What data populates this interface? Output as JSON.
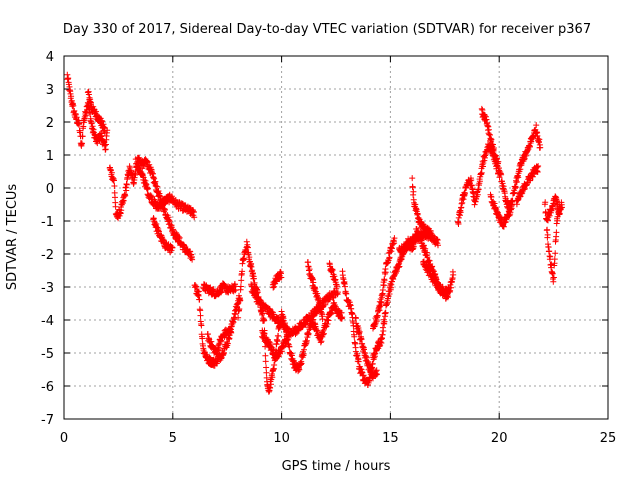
{
  "chart_data": {
    "type": "scatter",
    "title": "Day 330 of 2017, Sidereal Day-to-day VTEC variation (SDTVAR) for receiver p367",
    "xlabel": "GPS time / hours",
    "ylabel": "SDTVAR / TECUs",
    "xlim": [
      0,
      25
    ],
    "ylim": [
      -7,
      4
    ],
    "xticks": [
      0,
      5,
      10,
      15,
      20,
      25
    ],
    "yticks": [
      -7,
      -6,
      -5,
      -4,
      -3,
      -2,
      -1,
      0,
      1,
      2,
      3,
      4
    ],
    "grid": true,
    "marker": "+",
    "series": [
      {
        "name": "SDTVAR",
        "color": "#ff0000",
        "tracks": [
          [
            [
              0.15,
              3.4
            ],
            [
              0.3,
              2.8
            ],
            [
              0.5,
              2.2
            ],
            [
              0.7,
              1.9
            ],
            [
              0.8,
              1.2
            ],
            [
              0.9,
              2.0
            ],
            [
              1.1,
              2.6
            ],
            [
              1.3,
              1.8
            ],
            [
              1.5,
              1.4
            ],
            [
              1.7,
              1.6
            ],
            [
              1.9,
              1.2
            ],
            [
              2.0,
              1.8
            ]
          ],
          [
            [
              1.1,
              2.9
            ],
            [
              1.3,
              2.4
            ],
            [
              1.5,
              2.2
            ],
            [
              1.7,
              2.0
            ],
            [
              1.9,
              1.7
            ]
          ],
          [
            [
              2.1,
              0.6
            ],
            [
              2.3,
              0.2
            ],
            [
              2.4,
              -0.9
            ],
            [
              2.6,
              -0.7
            ],
            [
              2.8,
              -0.2
            ],
            [
              3.0,
              0.6
            ],
            [
              3.2,
              0.2
            ],
            [
              3.4,
              0.9
            ],
            [
              3.6,
              0.7
            ],
            [
              3.8,
              0.8
            ],
            [
              4.0,
              0.5
            ],
            [
              4.2,
              0.1
            ],
            [
              4.4,
              -0.3
            ],
            [
              4.7,
              -0.8
            ],
            [
              5.0,
              -1.3
            ],
            [
              5.3,
              -1.6
            ],
            [
              5.6,
              -1.9
            ],
            [
              5.9,
              -2.1
            ]
          ],
          [
            [
              3.3,
              0.8
            ],
            [
              3.5,
              0.5
            ],
            [
              3.7,
              0.2
            ],
            [
              3.9,
              -0.2
            ],
            [
              4.1,
              -0.4
            ],
            [
              4.3,
              -0.6
            ],
            [
              4.6,
              -0.4
            ],
            [
              4.9,
              -0.3
            ],
            [
              5.2,
              -0.5
            ],
            [
              5.5,
              -0.6
            ],
            [
              5.8,
              -0.7
            ],
            [
              6.0,
              -0.8
            ]
          ],
          [
            [
              4.1,
              -0.9
            ],
            [
              4.3,
              -1.3
            ],
            [
              4.6,
              -1.7
            ],
            [
              5.0,
              -1.9
            ]
          ],
          [
            [
              6.0,
              -3.0
            ],
            [
              6.2,
              -3.2
            ],
            [
              6.3,
              -4.1
            ],
            [
              6.4,
              -4.9
            ],
            [
              6.6,
              -5.2
            ],
            [
              6.9,
              -5.3
            ],
            [
              7.2,
              -5.1
            ],
            [
              7.5,
              -4.7
            ],
            [
              7.7,
              -4.2
            ],
            [
              7.9,
              -3.7
            ],
            [
              8.1,
              -3.2
            ]
          ],
          [
            [
              6.4,
              -3.0
            ],
            [
              6.7,
              -3.1
            ],
            [
              7.0,
              -3.2
            ],
            [
              7.3,
              -3.0
            ],
            [
              7.6,
              -3.1
            ],
            [
              7.9,
              -3.0
            ]
          ],
          [
            [
              6.6,
              -4.5
            ],
            [
              6.8,
              -4.8
            ],
            [
              7.0,
              -5.0
            ],
            [
              7.2,
              -4.6
            ],
            [
              7.4,
              -4.4
            ],
            [
              7.7,
              -4.3
            ]
          ],
          [
            [
              8.0,
              -3.9
            ],
            [
              8.1,
              -3.3
            ],
            [
              8.2,
              -2.3
            ],
            [
              8.4,
              -1.7
            ],
            [
              8.6,
              -2.4
            ],
            [
              8.8,
              -3.0
            ],
            [
              9.0,
              -3.5
            ],
            [
              9.2,
              -4.1
            ],
            [
              9.3,
              -5.7
            ],
            [
              9.4,
              -6.2
            ],
            [
              9.6,
              -5.6
            ],
            [
              9.8,
              -4.6
            ],
            [
              10.0,
              -3.8
            ],
            [
              10.2,
              -4.3
            ],
            [
              10.4,
              -5.0
            ],
            [
              10.6,
              -5.4
            ],
            [
              10.8,
              -5.5
            ],
            [
              11.0,
              -5.0
            ],
            [
              11.2,
              -4.4
            ],
            [
              11.4,
              -4.0
            ],
            [
              11.6,
              -4.3
            ],
            [
              11.8,
              -4.6
            ],
            [
              12.0,
              -4.2
            ],
            [
              12.2,
              -3.9
            ],
            [
              12.4,
              -3.5
            ],
            [
              12.6,
              -3.8
            ],
            [
              12.8,
              -3.9
            ]
          ],
          [
            [
              8.6,
              -3.0
            ],
            [
              8.9,
              -3.4
            ],
            [
              9.2,
              -3.6
            ],
            [
              9.5,
              -3.8
            ],
            [
              9.8,
              -4.0
            ],
            [
              10.1,
              -4.2
            ],
            [
              10.4,
              -4.4
            ],
            [
              10.7,
              -4.3
            ],
            [
              11.0,
              -4.1
            ],
            [
              11.3,
              -3.9
            ],
            [
              11.6,
              -3.7
            ],
            [
              11.9,
              -3.5
            ],
            [
              12.2,
              -3.3
            ],
            [
              12.5,
              -3.2
            ]
          ],
          [
            [
              9.1,
              -4.4
            ],
            [
              9.4,
              -4.7
            ],
            [
              9.7,
              -5.1
            ],
            [
              10.0,
              -4.9
            ],
            [
              10.3,
              -4.5
            ]
          ],
          [
            [
              9.6,
              -3.0
            ],
            [
              9.8,
              -2.7
            ],
            [
              10.0,
              -2.6
            ]
          ],
          [
            [
              11.2,
              -2.3
            ],
            [
              11.3,
              -2.6
            ],
            [
              11.5,
              -3.0
            ],
            [
              11.7,
              -3.4
            ],
            [
              11.9,
              -3.9
            ]
          ],
          [
            [
              12.2,
              -2.3
            ],
            [
              12.4,
              -2.7
            ],
            [
              12.6,
              -3.2
            ]
          ],
          [
            [
              12.8,
              -2.6
            ],
            [
              13.0,
              -3.4
            ],
            [
              13.2,
              -3.6
            ],
            [
              13.4,
              -4.9
            ],
            [
              13.6,
              -5.5
            ],
            [
              13.8,
              -5.8
            ],
            [
              14.0,
              -5.9
            ],
            [
              14.2,
              -5.2
            ],
            [
              14.4,
              -4.8
            ],
            [
              14.6,
              -4.6
            ],
            [
              14.8,
              -3.6
            ],
            [
              15.0,
              -3.0
            ],
            [
              15.2,
              -2.6
            ],
            [
              15.4,
              -2.3
            ],
            [
              15.6,
              -1.9
            ],
            [
              15.8,
              -1.6
            ],
            [
              16.0,
              -1.9
            ],
            [
              16.2,
              -1.3
            ],
            [
              16.4,
              -1.6
            ],
            [
              16.6,
              -1.9
            ],
            [
              16.8,
              -2.3
            ],
            [
              17.0,
              -2.6
            ],
            [
              17.2,
              -3.0
            ],
            [
              17.4,
              -3.1
            ],
            [
              17.6,
              -3.3
            ],
            [
              17.8,
              -2.9
            ],
            [
              17.9,
              -2.5
            ]
          ],
          [
            [
              13.4,
              -4.0
            ],
            [
              13.6,
              -4.5
            ],
            [
              13.8,
              -5.0
            ],
            [
              14.0,
              -5.4
            ],
            [
              14.2,
              -5.7
            ],
            [
              14.4,
              -5.6
            ]
          ],
          [
            [
              14.2,
              -4.2
            ],
            [
              14.4,
              -3.9
            ],
            [
              14.6,
              -3.3
            ],
            [
              14.8,
              -2.4
            ],
            [
              15.0,
              -1.9
            ],
            [
              15.2,
              -1.6
            ]
          ],
          [
            [
              15.4,
              -1.9
            ],
            [
              15.7,
              -1.8
            ],
            [
              16.0,
              -1.6
            ],
            [
              16.3,
              -1.5
            ],
            [
              16.6,
              -1.4
            ],
            [
              16.9,
              -1.5
            ],
            [
              17.2,
              -1.7
            ]
          ],
          [
            [
              16.0,
              0.2
            ],
            [
              16.1,
              -0.5
            ],
            [
              16.3,
              -1.0
            ],
            [
              16.5,
              -1.2
            ],
            [
              16.7,
              -1.3
            ],
            [
              16.9,
              -1.4
            ]
          ],
          [
            [
              16.5,
              -2.2
            ],
            [
              16.8,
              -2.6
            ],
            [
              17.1,
              -2.9
            ],
            [
              17.4,
              -3.2
            ],
            [
              17.7,
              -3.1
            ]
          ],
          [
            [
              18.1,
              -1.1
            ],
            [
              18.3,
              -0.4
            ],
            [
              18.5,
              0.1
            ],
            [
              18.7,
              0.2
            ],
            [
              18.9,
              -0.5
            ],
            [
              19.1,
              0.2
            ],
            [
              19.3,
              0.9
            ],
            [
              19.5,
              1.3
            ],
            [
              19.7,
              1.1
            ],
            [
              19.9,
              0.6
            ],
            [
              20.1,
              0.3
            ],
            [
              20.3,
              -0.4
            ],
            [
              20.5,
              -0.6
            ],
            [
              20.7,
              -0.1
            ],
            [
              20.9,
              0.5
            ],
            [
              21.1,
              0.9
            ],
            [
              21.3,
              1.1
            ],
            [
              21.5,
              1.5
            ],
            [
              21.7,
              1.8
            ],
            [
              21.9,
              1.2
            ]
          ],
          [
            [
              19.2,
              2.3
            ],
            [
              19.4,
              2.1
            ],
            [
              19.6,
              1.5
            ],
            [
              19.8,
              1.0
            ],
            [
              20.0,
              0.6
            ]
          ],
          [
            [
              19.6,
              -0.3
            ],
            [
              19.8,
              -0.6
            ],
            [
              20.0,
              -0.9
            ],
            [
              20.2,
              -1.1
            ],
            [
              20.4,
              -0.8
            ],
            [
              20.6,
              -0.6
            ]
          ],
          [
            [
              20.8,
              -0.4
            ],
            [
              21.0,
              -0.2
            ],
            [
              21.2,
              0.1
            ],
            [
              21.4,
              0.3
            ],
            [
              21.6,
              0.5
            ],
            [
              21.8,
              0.6
            ]
          ],
          [
            [
              22.1,
              -0.4
            ],
            [
              22.2,
              -1.3
            ],
            [
              22.3,
              -2.0
            ],
            [
              22.4,
              -2.4
            ],
            [
              22.5,
              -2.8
            ],
            [
              22.6,
              -1.5
            ],
            [
              22.7,
              -0.7
            ],
            [
              22.9,
              -0.5
            ]
          ],
          [
            [
              22.2,
              -1.0
            ],
            [
              22.4,
              -0.6
            ],
            [
              22.6,
              -0.3
            ],
            [
              22.8,
              -0.9
            ]
          ]
        ]
      }
    ]
  }
}
